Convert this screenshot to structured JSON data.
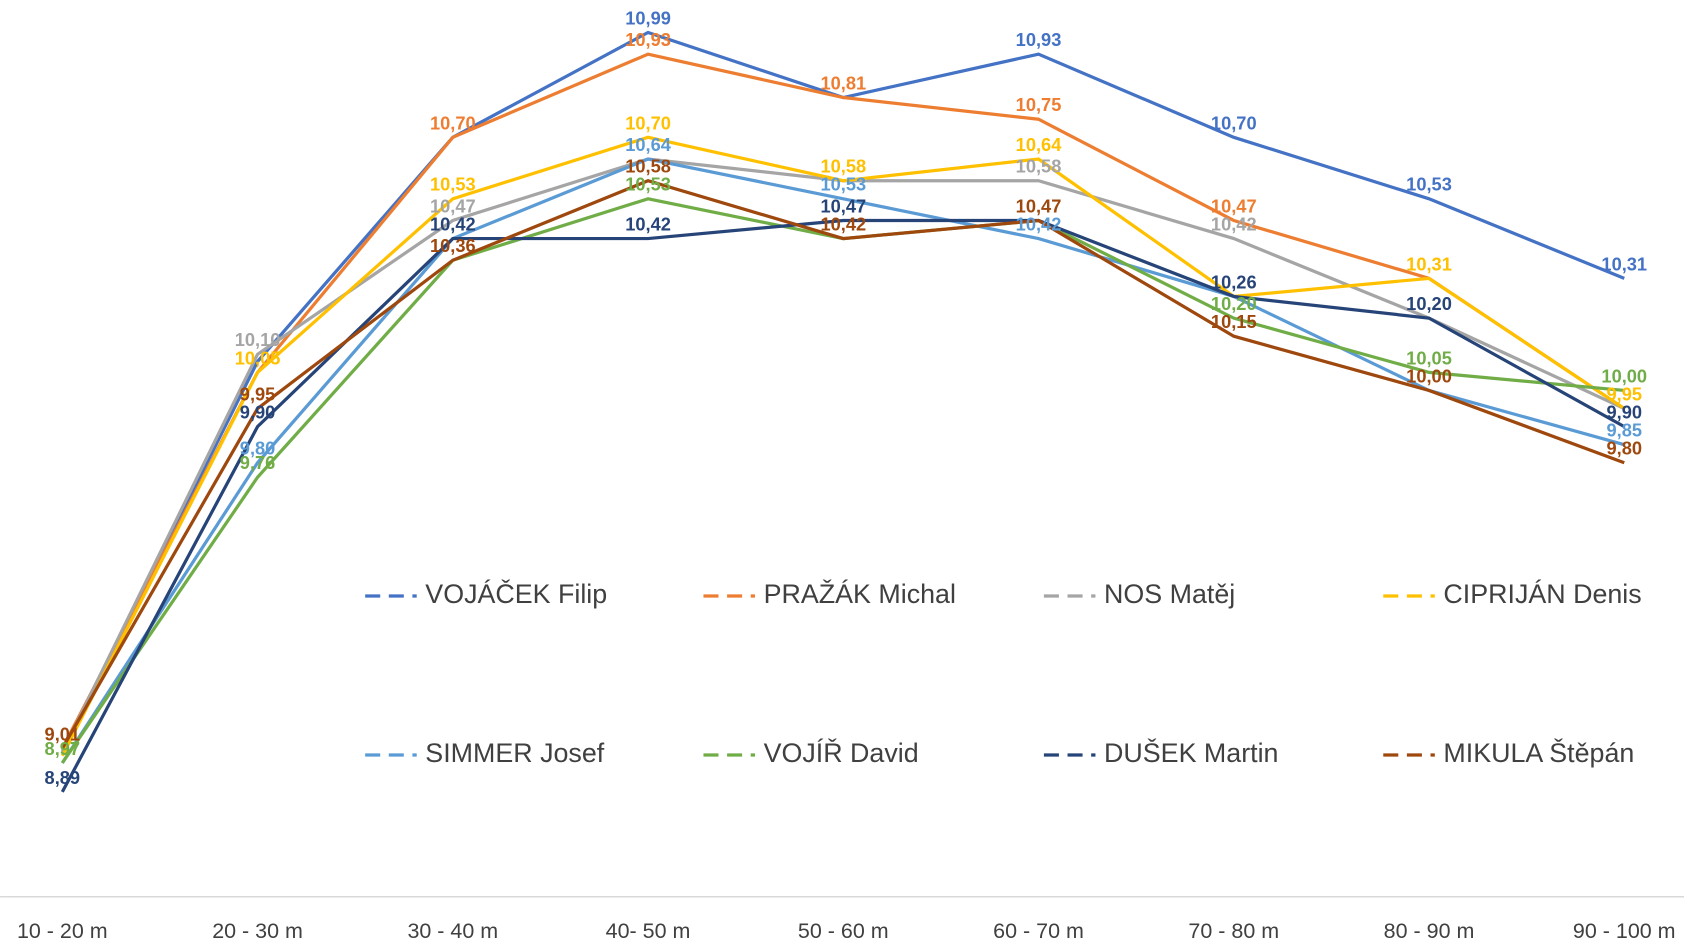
{
  "chart_data": {
    "type": "line",
    "categories": [
      "10 - 20 m",
      "20 - 30 m",
      "30 - 40 m",
      "40- 50 m",
      "50 - 60 m",
      "60 - 70 m",
      "70 - 80 m",
      "80 - 90 m",
      "90 - 100 m"
    ],
    "ylim": [
      8.6,
      11.05
    ],
    "series": [
      {
        "name": "VOJÁČEK Filip",
        "color": "#4472c4",
        "values": [
          9.0,
          10.08,
          10.7,
          10.99,
          10.81,
          10.93,
          10.7,
          10.53,
          10.31
        ],
        "value_labels": [
          null,
          null,
          null,
          "10,99",
          null,
          "10,93",
          "10,70",
          "10,53",
          "10,31"
        ]
      },
      {
        "name": "PRAŽÁK Michal",
        "color": "#ed7d31",
        "values": [
          9.01,
          10.05,
          10.7,
          10.93,
          10.81,
          10.75,
          10.47,
          10.31,
          9.95
        ],
        "value_labels": [
          null,
          null,
          "10,70",
          "10,93",
          "10,81",
          "10,75",
          "10,47",
          null,
          null
        ]
      },
      {
        "name": "NOS Matěj",
        "color": "#a5a5a5",
        "values": [
          9.0,
          10.1,
          10.47,
          10.64,
          10.58,
          10.58,
          10.42,
          10.2,
          9.95
        ],
        "value_labels": [
          null,
          "10,10",
          "10,47",
          null,
          null,
          "10,58",
          "10,42",
          null,
          null
        ]
      },
      {
        "name": "CIPRIJÁN Denis",
        "color": "#ffc000",
        "values": [
          8.99,
          10.05,
          10.53,
          10.7,
          10.58,
          10.64,
          10.26,
          10.31,
          9.95
        ],
        "value_labels": [
          null,
          "10,05",
          "10,53",
          "10,70",
          "10,58",
          "10,64",
          null,
          "10,31",
          "9,95"
        ]
      },
      {
        "name": "SIMMER Josef",
        "color": "#5b9bd5",
        "values": [
          8.97,
          9.8,
          10.42,
          10.64,
          10.53,
          10.42,
          10.26,
          10.0,
          9.85
        ],
        "value_labels": [
          null,
          "9,80",
          null,
          "10,64",
          "10,53",
          "10,42",
          null,
          null,
          "9,85"
        ]
      },
      {
        "name": "VOJÍŘ David",
        "color": "#70ad47",
        "values": [
          8.97,
          9.76,
          10.36,
          10.53,
          10.42,
          10.47,
          10.2,
          10.05,
          10.0
        ],
        "value_labels": [
          "8,97",
          "9,76",
          null,
          "10,53",
          null,
          null,
          "10,20",
          "10,05",
          "10,00"
        ]
      },
      {
        "name": "DUŠEK Martin",
        "color": "#264478",
        "values": [
          8.89,
          9.9,
          10.42,
          10.42,
          10.47,
          10.47,
          10.26,
          10.2,
          9.9
        ],
        "value_labels": [
          "8,89",
          "9,90",
          "10,42",
          "10,42",
          "10,47",
          null,
          "10,26",
          "10,20",
          "9,90"
        ]
      },
      {
        "name": "MIKULA Štěpán",
        "color": "#9e480e",
        "values": [
          9.01,
          9.95,
          10.36,
          10.58,
          10.42,
          10.47,
          10.15,
          10.0,
          9.8
        ],
        "value_labels": [
          "9,01",
          "9,95",
          "10,36",
          "10,58",
          "10,42",
          "10,47",
          "10,15",
          "10,00",
          "9,80"
        ]
      }
    ]
  }
}
